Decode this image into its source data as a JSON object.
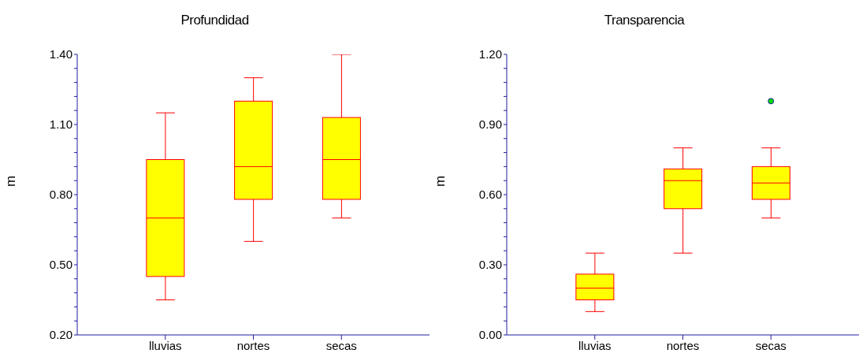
{
  "chart_data": [
    {
      "type": "box",
      "title": "Profundidad",
      "ylabel": "m",
      "categories": [
        "lluvias",
        "nortes",
        "secas"
      ],
      "color": "#ffff00",
      "boxes": [
        {
          "low": 0.35,
          "q1": 0.45,
          "median": 0.7,
          "q3": 0.95,
          "high": 1.15
        },
        {
          "low": 0.6,
          "q1": 0.78,
          "median": 0.92,
          "q3": 1.2,
          "high": 1.3
        },
        {
          "low": 0.7,
          "q1": 0.78,
          "median": 0.95,
          "q3": 1.13,
          "high": 1.4
        }
      ],
      "ylim": [
        0.2,
        1.4
      ],
      "yticks": [
        {
          "value": 0.2,
          "label": "0.20"
        },
        {
          "value": 0.26,
          "label": null
        },
        {
          "value": 0.32,
          "label": null
        },
        {
          "value": 0.38,
          "label": null
        },
        {
          "value": 0.44,
          "label": null
        },
        {
          "value": 0.5,
          "label": "0.50"
        },
        {
          "value": 0.56,
          "label": null
        },
        {
          "value": 0.62,
          "label": null
        },
        {
          "value": 0.68,
          "label": null
        },
        {
          "value": 0.74,
          "label": null
        },
        {
          "value": 0.8,
          "label": "0.80"
        },
        {
          "value": 0.86,
          "label": null
        },
        {
          "value": 0.92,
          "label": null
        },
        {
          "value": 0.98,
          "label": null
        },
        {
          "value": 1.04,
          "label": null
        },
        {
          "value": 1.1,
          "label": "1.10"
        },
        {
          "value": 1.16,
          "label": null
        },
        {
          "value": 1.22,
          "label": null
        },
        {
          "value": 1.28,
          "label": null
        },
        {
          "value": 1.34,
          "label": null
        },
        {
          "value": 1.4,
          "label": "1.40"
        }
      ]
    },
    {
      "type": "box",
      "title": "Transparencia",
      "ylabel": "m",
      "categories": [
        "lluvias",
        "nortes",
        "secas"
      ],
      "color": "#ffff00",
      "boxes": [
        {
          "low": 0.1,
          "q1": 0.15,
          "median": 0.2,
          "q3": 0.26,
          "high": 0.35
        },
        {
          "low": 0.35,
          "q1": 0.54,
          "median": 0.66,
          "q3": 0.71,
          "high": 0.8
        },
        {
          "low": 0.5,
          "q1": 0.58,
          "median": 0.65,
          "q3": 0.72,
          "high": 0.8,
          "outliers": [
            1.0
          ]
        }
      ],
      "ylim": [
        0.0,
        1.2
      ],
      "yticks": [
        {
          "value": 0.0,
          "label": "0.00"
        },
        {
          "value": 0.06,
          "label": null
        },
        {
          "value": 0.12,
          "label": null
        },
        {
          "value": 0.18,
          "label": null
        },
        {
          "value": 0.24,
          "label": null
        },
        {
          "value": 0.3,
          "label": "0.30"
        },
        {
          "value": 0.36,
          "label": null
        },
        {
          "value": 0.42,
          "label": null
        },
        {
          "value": 0.48,
          "label": null
        },
        {
          "value": 0.54,
          "label": null
        },
        {
          "value": 0.6,
          "label": "0.60"
        },
        {
          "value": 0.66,
          "label": null
        },
        {
          "value": 0.72,
          "label": null
        },
        {
          "value": 0.78,
          "label": null
        },
        {
          "value": 0.84,
          "label": null
        },
        {
          "value": 0.9,
          "label": "0.90"
        },
        {
          "value": 0.96,
          "label": null
        },
        {
          "value": 1.02,
          "label": null
        },
        {
          "value": 1.08,
          "label": null
        },
        {
          "value": 1.14,
          "label": null
        },
        {
          "value": 1.2,
          "label": "1.20"
        }
      ]
    }
  ]
}
